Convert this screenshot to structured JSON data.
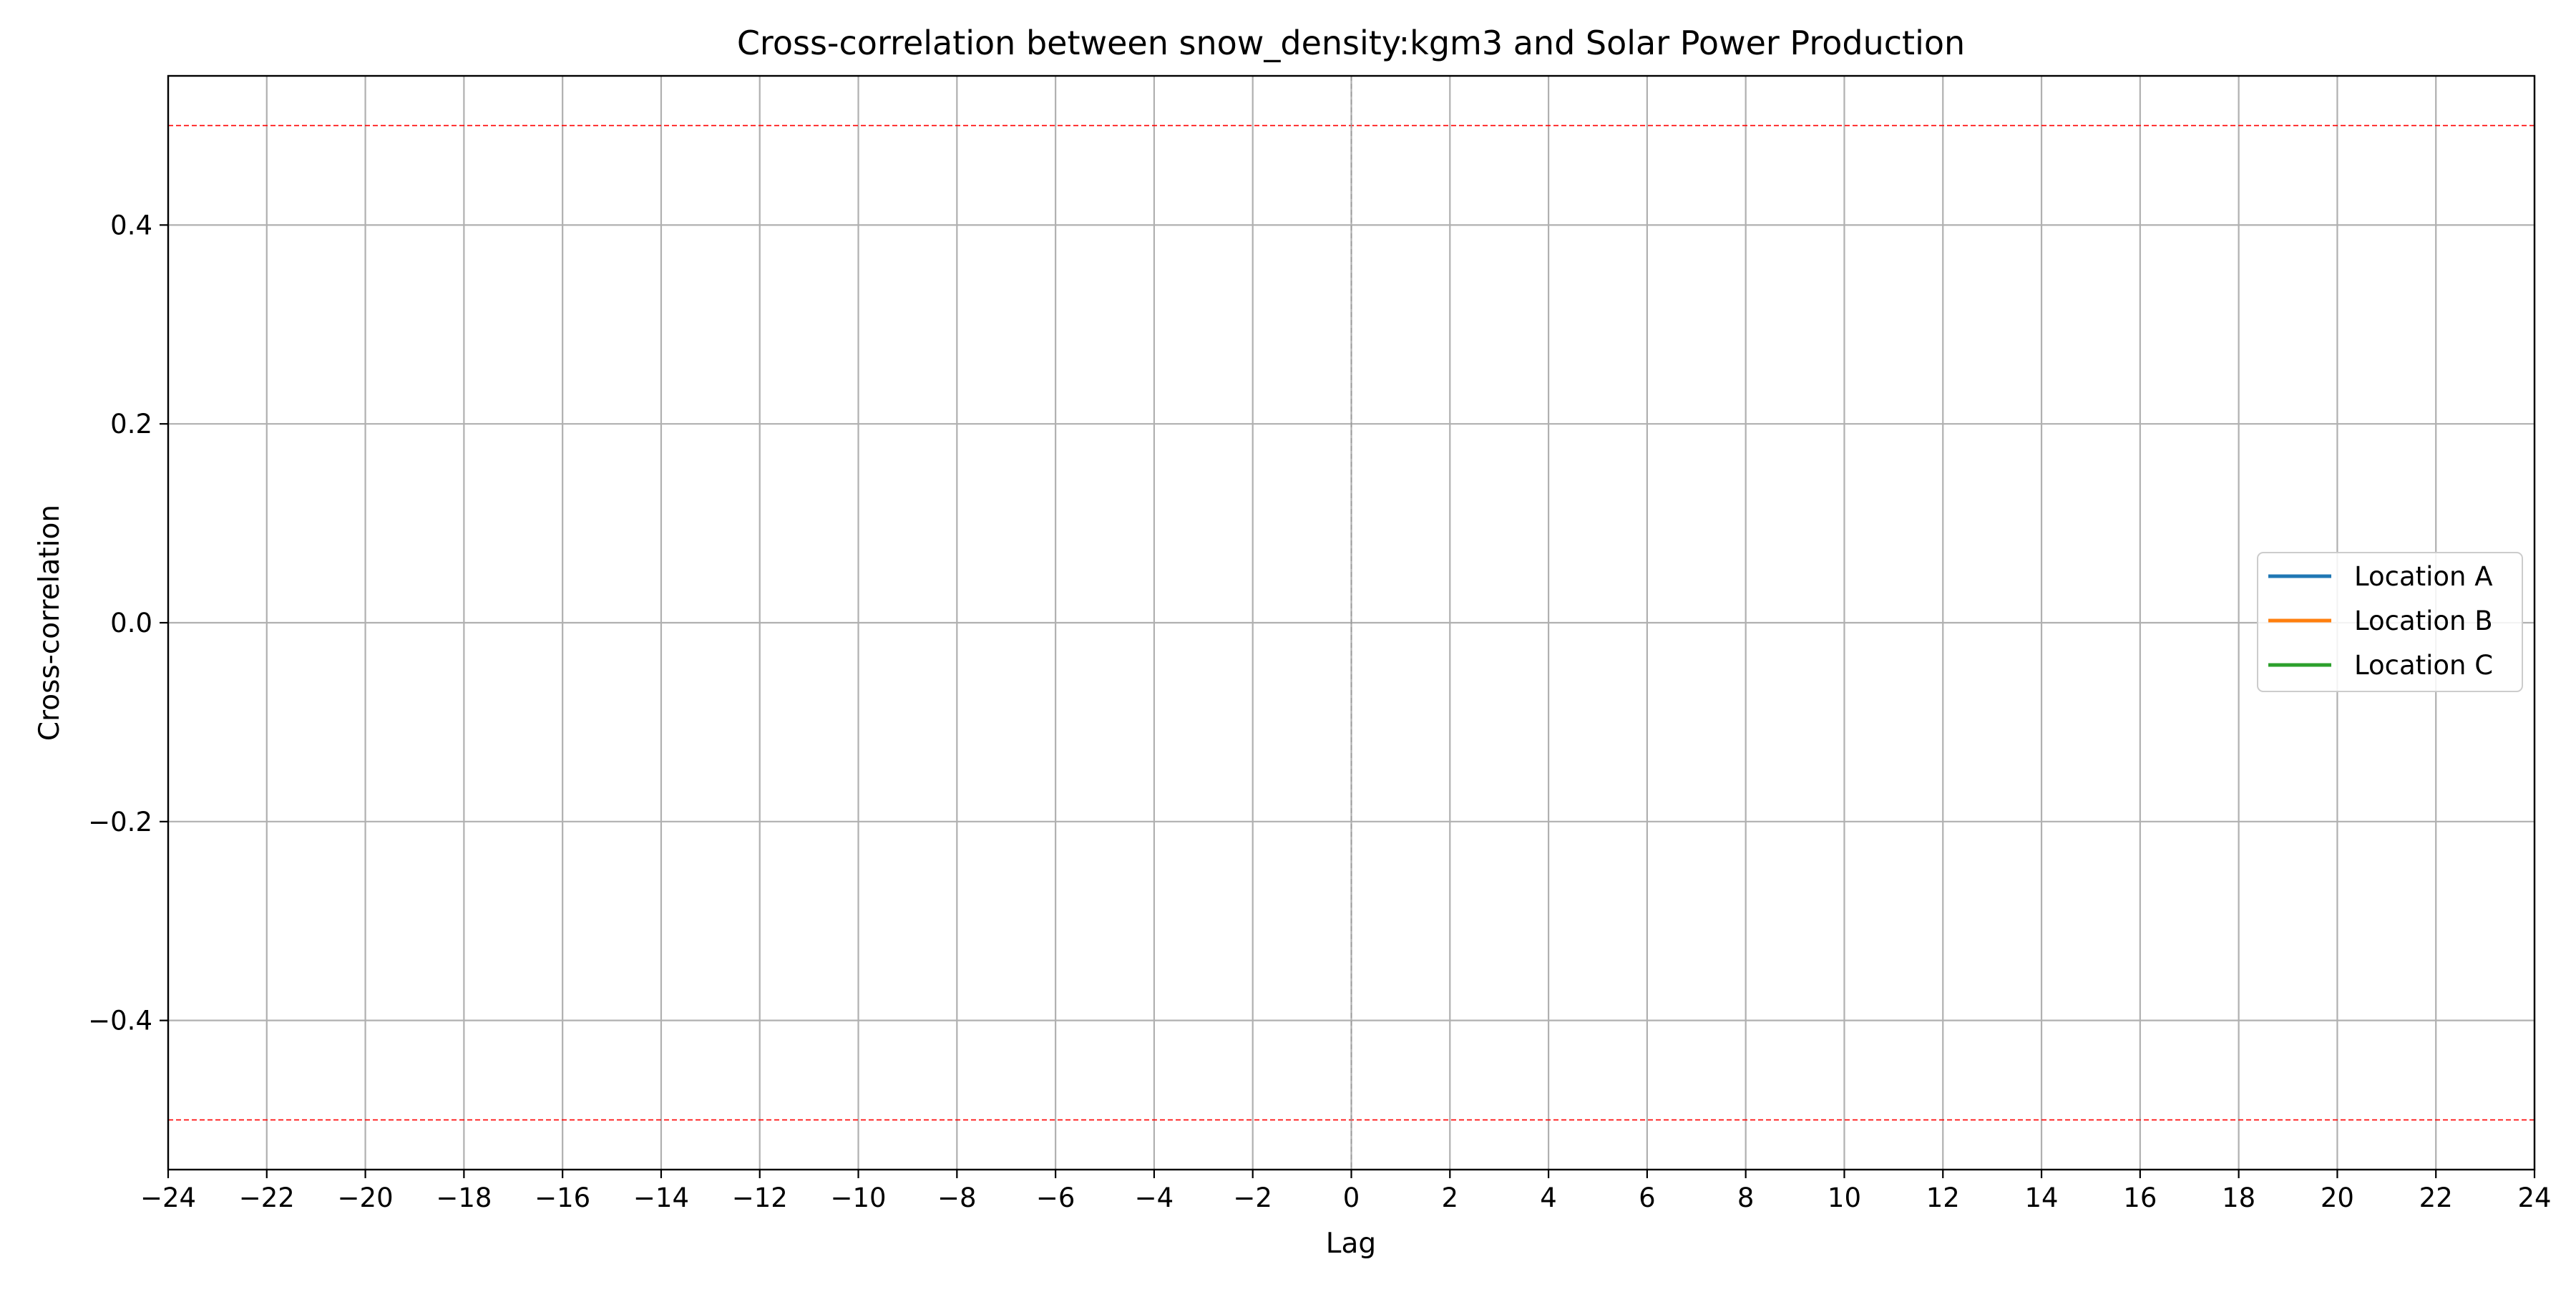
{
  "chart_data": {
    "type": "line",
    "title": "Cross-correlation between snow_density:kgm3 and Solar Power Production",
    "xlabel": "Lag",
    "ylabel": "Cross-correlation",
    "xlim": [
      -24,
      24
    ],
    "ylim": [
      -0.55,
      0.55
    ],
    "x_ticks": [
      -24,
      -22,
      -20,
      -18,
      -16,
      -14,
      -12,
      -10,
      -8,
      -6,
      -4,
      -2,
      0,
      2,
      4,
      6,
      8,
      10,
      12,
      14,
      16,
      18,
      20,
      22,
      24
    ],
    "y_ticks": [
      -0.4,
      -0.2,
      0.0,
      0.2,
      0.4
    ],
    "grid": true,
    "legend_position": "center-right",
    "series": [
      {
        "name": "Location A",
        "color": "#1f77b4",
        "x": [],
        "y": []
      },
      {
        "name": "Location B",
        "color": "#ff7f0e",
        "x": [],
        "y": []
      },
      {
        "name": "Location C",
        "color": "#2ca02c",
        "x": [],
        "y": []
      }
    ],
    "reference_lines": [
      {
        "axis": "y",
        "value": 0.5,
        "color": "#ff0000",
        "style": "dashed"
      },
      {
        "axis": "y",
        "value": -0.5,
        "color": "#ff0000",
        "style": "dashed"
      },
      {
        "axis": "x",
        "value": 0,
        "color": "#999999",
        "style": "dashed"
      }
    ]
  }
}
